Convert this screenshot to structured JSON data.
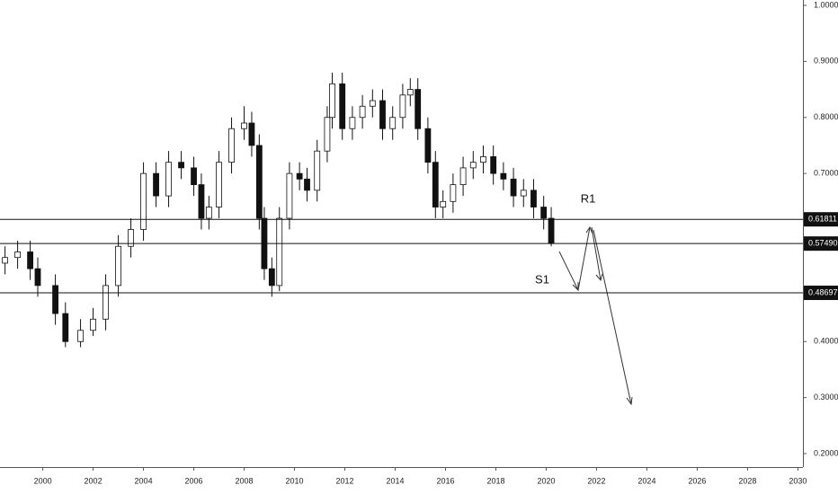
{
  "chart_data": {
    "type": "candlestick",
    "x": [
      1998.5,
      1999.0,
      1999.5,
      1999.8,
      2000.5,
      2000.9,
      2001.5,
      2002.0,
      2002.5,
      2003.0,
      2003.5,
      2004.0,
      2004.5,
      2005.0,
      2005.5,
      2006.0,
      2006.3,
      2006.6,
      2007.0,
      2007.5,
      2008.0,
      2008.3,
      2008.6,
      2008.8,
      2009.1,
      2009.4,
      2009.8,
      2010.2,
      2010.5,
      2010.9,
      2011.3,
      2011.5,
      2011.9,
      2012.3,
      2012.7,
      2013.1,
      2013.5,
      2013.9,
      2014.3,
      2014.6,
      2014.9,
      2015.3,
      2015.6,
      2015.9,
      2016.3,
      2016.7,
      2017.1,
      2017.5,
      2017.9,
      2018.3,
      2018.7,
      2019.1,
      2019.5,
      2019.9,
      2020.2
    ],
    "open": [
      0.54,
      0.55,
      0.56,
      0.53,
      0.5,
      0.45,
      0.4,
      0.42,
      0.44,
      0.5,
      0.57,
      0.6,
      0.7,
      0.66,
      0.72,
      0.71,
      0.68,
      0.62,
      0.64,
      0.72,
      0.78,
      0.79,
      0.75,
      0.62,
      0.53,
      0.5,
      0.62,
      0.7,
      0.69,
      0.67,
      0.74,
      0.8,
      0.86,
      0.78,
      0.8,
      0.82,
      0.83,
      0.78,
      0.8,
      0.84,
      0.85,
      0.78,
      0.72,
      0.64,
      0.65,
      0.68,
      0.71,
      0.72,
      0.73,
      0.7,
      0.69,
      0.66,
      0.67,
      0.64,
      0.62
    ],
    "high": [
      0.57,
      0.58,
      0.58,
      0.55,
      0.52,
      0.47,
      0.44,
      0.46,
      0.52,
      0.59,
      0.62,
      0.72,
      0.72,
      0.74,
      0.74,
      0.73,
      0.7,
      0.66,
      0.74,
      0.8,
      0.82,
      0.81,
      0.77,
      0.64,
      0.55,
      0.64,
      0.72,
      0.72,
      0.71,
      0.76,
      0.82,
      0.88,
      0.88,
      0.82,
      0.84,
      0.85,
      0.85,
      0.82,
      0.86,
      0.87,
      0.87,
      0.8,
      0.74,
      0.67,
      0.7,
      0.73,
      0.74,
      0.75,
      0.75,
      0.72,
      0.71,
      0.69,
      0.69,
      0.66,
      0.64
    ],
    "low": [
      0.52,
      0.53,
      0.51,
      0.48,
      0.43,
      0.39,
      0.39,
      0.41,
      0.42,
      0.48,
      0.55,
      0.58,
      0.64,
      0.64,
      0.69,
      0.66,
      0.6,
      0.6,
      0.62,
      0.7,
      0.76,
      0.73,
      0.6,
      0.51,
      0.48,
      0.49,
      0.6,
      0.67,
      0.65,
      0.65,
      0.72,
      0.78,
      0.76,
      0.76,
      0.78,
      0.8,
      0.76,
      0.76,
      0.78,
      0.82,
      0.76,
      0.7,
      0.62,
      0.62,
      0.63,
      0.66,
      0.69,
      0.7,
      0.68,
      0.67,
      0.64,
      0.64,
      0.62,
      0.6,
      0.57
    ],
    "close": [
      0.55,
      0.56,
      0.53,
      0.5,
      0.45,
      0.4,
      0.42,
      0.44,
      0.5,
      0.57,
      0.6,
      0.7,
      0.66,
      0.72,
      0.71,
      0.68,
      0.62,
      0.64,
      0.72,
      0.78,
      0.79,
      0.75,
      0.62,
      0.53,
      0.5,
      0.62,
      0.7,
      0.69,
      0.67,
      0.74,
      0.8,
      0.86,
      0.78,
      0.8,
      0.82,
      0.83,
      0.78,
      0.8,
      0.84,
      0.85,
      0.78,
      0.72,
      0.64,
      0.65,
      0.68,
      0.71,
      0.72,
      0.73,
      0.7,
      0.69,
      0.66,
      0.67,
      0.64,
      0.62,
      0.575
    ],
    "up_color": "#ffffff",
    "down_color": "#111111",
    "xlim": [
      1998.3,
      2030.2
    ],
    "xticks": [
      2000,
      2002,
      2004,
      2006,
      2008,
      2010,
      2012,
      2014,
      2016,
      2018,
      2020,
      2022,
      2024,
      2026,
      2028,
      2030
    ],
    "ylim": [
      0.176,
      1.0096
    ],
    "yticks": [
      {
        "value": 0.2,
        "label": "0.20000"
      },
      {
        "value": 0.3,
        "label": "0.30000"
      },
      {
        "value": 0.4,
        "label": "0.40000"
      },
      {
        "value": 0.7,
        "label": "0.70000"
      },
      {
        "value": 0.8,
        "label": "0.80000"
      },
      {
        "value": 0.9,
        "label": "0.90000"
      },
      {
        "value": 1.0,
        "label": "1.00000"
      }
    ],
    "levels": [
      0.61811,
      {
        "value": 0.5749,
        "label": "0.57490"
      },
      0.48697
    ],
    "annotations": [
      "R1",
      "S1"
    ]
  }
}
